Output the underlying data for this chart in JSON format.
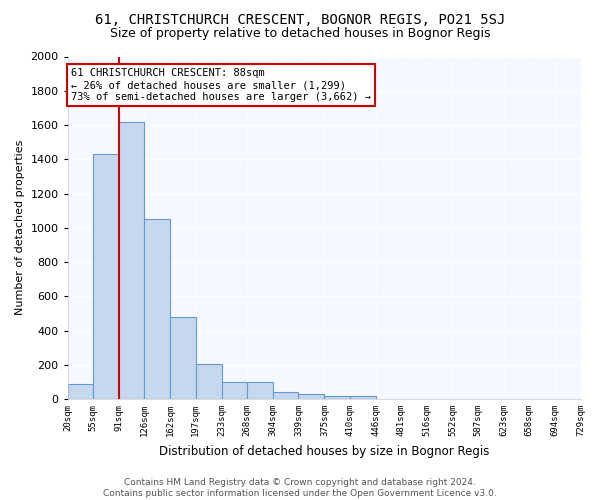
{
  "title": "61, CHRISTCHURCH CRESCENT, BOGNOR REGIS, PO21 5SJ",
  "subtitle": "Size of property relative to detached houses in Bognor Regis",
  "xlabel": "Distribution of detached houses by size in Bognor Regis",
  "ylabel": "Number of detached properties",
  "bin_edges": [
    20,
    55,
    91,
    126,
    162,
    197,
    233,
    268,
    304,
    339,
    375,
    410,
    446,
    481,
    516,
    552,
    587,
    623,
    658,
    694,
    729
  ],
  "counts": [
    85,
    1430,
    1620,
    1050,
    480,
    205,
    100,
    100,
    40,
    28,
    20,
    15,
    0,
    0,
    0,
    0,
    0,
    0,
    0,
    0
  ],
  "bar_color": "#c5d8f0",
  "bar_edge_color": "#6699cc",
  "vline_x": 91,
  "vline_color": "#cc0000",
  "annotation_text": "61 CHRISTCHURCH CRESCENT: 88sqm\n← 26% of detached houses are smaller (1,299)\n73% of semi-detached houses are larger (3,662) →",
  "annotation_box_color": "#ffffff",
  "annotation_box_edge_color": "#cc0000",
  "ylim": [
    0,
    2000
  ],
  "yticks": [
    0,
    200,
    400,
    600,
    800,
    1000,
    1200,
    1400,
    1600,
    1800,
    2000
  ],
  "bg_color": "#f5f8ff",
  "plot_bg_color": "#f5f8ff",
  "footer": "Contains HM Land Registry data © Crown copyright and database right 2024.\nContains public sector information licensed under the Open Government Licence v3.0.",
  "title_fontsize": 10,
  "subtitle_fontsize": 9,
  "footer_fontsize": 6.5,
  "ylabel_fontsize": 8,
  "xlabel_fontsize": 8.5
}
